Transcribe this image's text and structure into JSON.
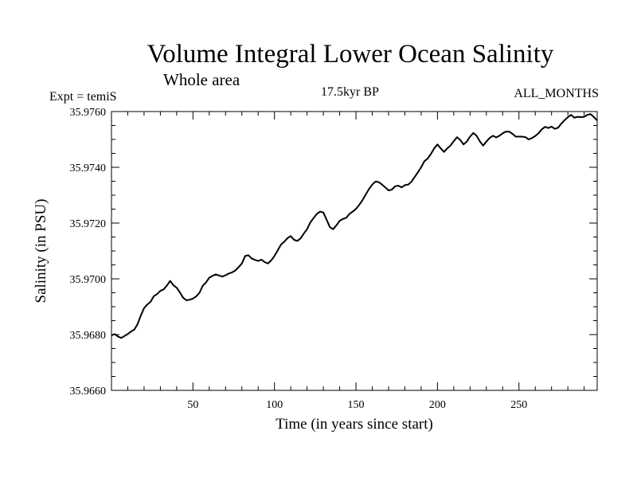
{
  "chart_data": {
    "type": "line",
    "title": "Volume Integral Lower Ocean Salinity",
    "subtitle": "Whole area",
    "experiment_label": "Expt = temiS",
    "period_label": "17.5kyr BP",
    "months_label": "ALL_MONTHS",
    "xlabel": "Time (in years since start)",
    "ylabel": "Salinity (in PSU)",
    "xlim": [
      0,
      298
    ],
    "ylim": [
      35.966,
      35.976
    ],
    "xticks": [
      50,
      100,
      150,
      200,
      250
    ],
    "xtick_labels": [
      "50",
      "100",
      "150",
      "200",
      "250"
    ],
    "yticks": [
      35.966,
      35.968,
      35.97,
      35.972,
      35.974,
      35.976
    ],
    "ytick_labels": [
      "35.9660",
      "35.9680",
      "35.9700",
      "35.9720",
      "35.9740",
      "35.9760"
    ],
    "series": [
      {
        "name": "Salinity",
        "x": [
          0,
          2,
          4,
          6,
          8,
          10,
          12,
          14,
          16,
          18,
          20,
          22,
          24,
          26,
          28,
          30,
          32,
          34,
          36,
          38,
          40,
          42,
          44,
          46,
          48,
          50,
          52,
          54,
          56,
          58,
          60,
          62,
          64,
          66,
          68,
          70,
          72,
          74,
          76,
          78,
          80,
          82,
          84,
          86,
          88,
          90,
          92,
          94,
          96,
          98,
          100,
          102,
          104,
          106,
          108,
          110,
          112,
          114,
          116,
          118,
          120,
          122,
          124,
          126,
          128,
          130,
          132,
          134,
          136,
          138,
          140,
          142,
          144,
          146,
          148,
          150,
          152,
          154,
          156,
          158,
          160,
          162,
          164,
          166,
          168,
          170,
          172,
          174,
          176,
          178,
          180,
          182,
          184,
          186,
          188,
          190,
          192,
          194,
          196,
          198,
          200,
          202,
          204,
          206,
          208,
          210,
          212,
          214,
          216,
          218,
          220,
          222,
          224,
          226,
          228,
          230,
          232,
          234,
          236,
          238,
          240,
          242,
          244,
          246,
          248,
          250,
          252,
          254,
          256,
          258,
          260,
          262,
          264,
          266,
          268,
          270,
          272,
          274,
          276,
          278,
          280,
          282,
          284,
          286,
          288,
          290,
          292,
          294,
          296,
          298
        ],
        "values": [
          35.96797,
          35.96802,
          35.96793,
          35.96788,
          35.96795,
          35.96802,
          35.96811,
          35.96818,
          35.96838,
          35.96868,
          35.96895,
          35.96908,
          35.96918,
          35.96938,
          35.96945,
          35.96957,
          35.96962,
          35.96976,
          35.96993,
          35.96977,
          35.96968,
          35.96951,
          35.96932,
          35.96923,
          35.96925,
          35.96929,
          35.96937,
          35.9695,
          35.96975,
          35.96987,
          35.97004,
          35.97011,
          35.97016,
          35.97012,
          35.97008,
          35.97013,
          35.97019,
          35.97023,
          35.9703,
          35.97042,
          35.97055,
          35.97082,
          35.97085,
          35.97073,
          35.97068,
          35.97064,
          35.97069,
          35.9706,
          35.97055,
          35.97066,
          35.97082,
          35.97102,
          35.97123,
          35.97133,
          35.97146,
          35.97153,
          35.9714,
          35.97136,
          35.97145,
          35.97162,
          35.97178,
          35.97202,
          35.97218,
          35.97233,
          35.97241,
          35.97238,
          35.97212,
          35.97185,
          35.97178,
          35.97192,
          35.97208,
          35.97215,
          35.97219,
          35.97233,
          35.97241,
          35.97251,
          35.97265,
          35.97282,
          35.97302,
          35.97322,
          35.97338,
          35.97349,
          35.97347,
          35.97338,
          35.97328,
          35.97317,
          35.9732,
          35.97332,
          35.97334,
          35.97328,
          35.97336,
          35.97338,
          35.97348,
          35.97365,
          35.97382,
          35.974,
          35.97422,
          35.97431,
          35.97448,
          35.97468,
          35.97482,
          35.97468,
          35.97455,
          35.97468,
          35.97478,
          35.97494,
          35.97508,
          35.97498,
          35.97482,
          35.97492,
          35.9751,
          35.97523,
          35.97513,
          35.97493,
          35.97478,
          35.97492,
          35.97505,
          35.97513,
          35.97507,
          35.97513,
          35.97522,
          35.97528,
          35.97528,
          35.9752,
          35.9751,
          35.9751,
          35.9751,
          35.97508,
          35.975,
          35.97505,
          35.97512,
          35.97522,
          35.97536,
          35.97545,
          35.97541,
          35.97546,
          35.97538,
          35.97542,
          35.97557,
          35.97569,
          35.9758,
          35.97588,
          35.97578,
          35.97581,
          35.9758,
          35.97581,
          35.97588,
          35.97591,
          35.9758,
          35.97568
        ]
      }
    ]
  }
}
